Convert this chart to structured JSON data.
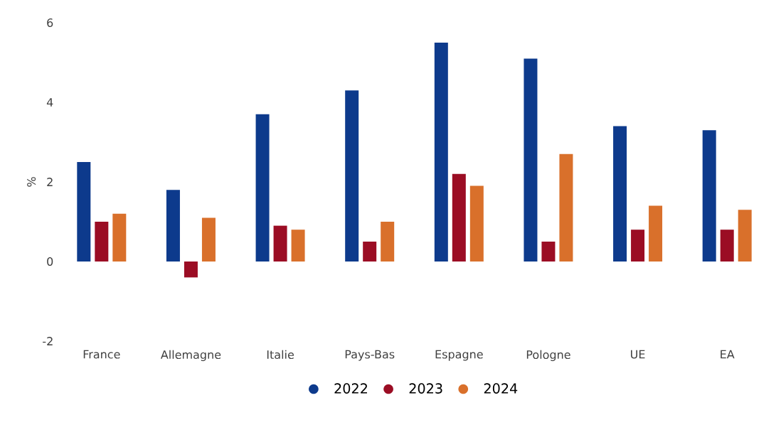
{
  "chart_data": {
    "type": "bar",
    "ylabel": "%",
    "categories": [
      "France",
      "Allemagne",
      "Italie",
      "Pays-Bas",
      "Espagne",
      "Pologne",
      "UE",
      "EA"
    ],
    "series": [
      {
        "name": "2022",
        "color": "#0d3a8c",
        "values": [
          2.5,
          1.8,
          3.7,
          4.3,
          5.5,
          5.1,
          3.4,
          3.3
        ]
      },
      {
        "name": "2023",
        "color": "#9b0d24",
        "values": [
          1.0,
          -0.4,
          0.9,
          0.5,
          2.2,
          0.5,
          0.8,
          0.8
        ]
      },
      {
        "name": "2024",
        "color": "#d9702b",
        "values": [
          1.2,
          1.1,
          0.8,
          1.0,
          1.9,
          2.7,
          1.4,
          1.3
        ]
      }
    ],
    "ylim": [
      -2,
      6
    ],
    "yticks": [
      -2,
      0,
      2,
      4,
      6
    ],
    "grid": false,
    "legend": "bottom"
  }
}
